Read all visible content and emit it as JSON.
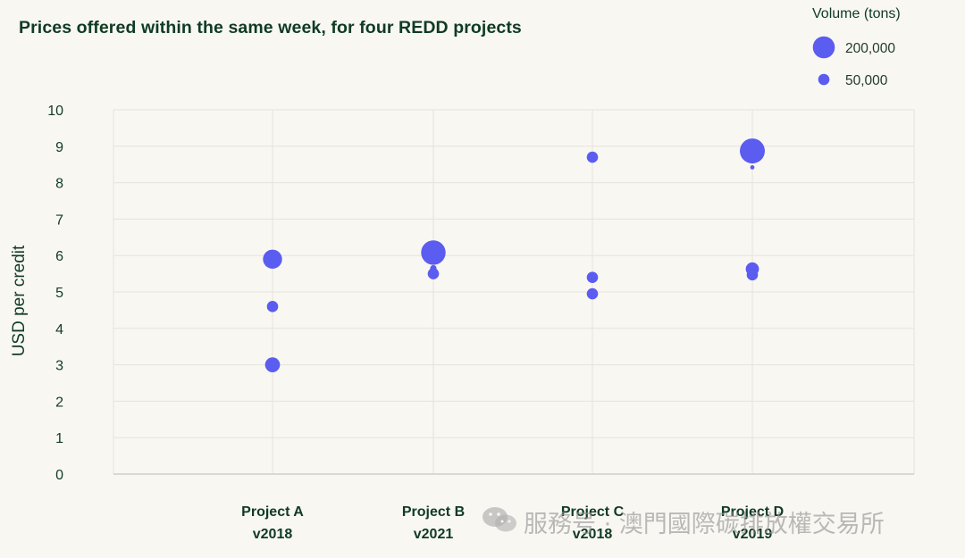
{
  "chart_data": {
    "type": "scatter",
    "title": "Prices offered within the same week, for four REDD projects",
    "ylabel": "USD per credit",
    "ylim": [
      0,
      10
    ],
    "yticks": [
      "0",
      "1",
      "2",
      "3",
      "4",
      "5",
      "6",
      "7",
      "8",
      "9",
      "10"
    ],
    "categories": [
      {
        "line1": "Project A",
        "line2": "v2018"
      },
      {
        "line1": "Project B",
        "line2": "v2021"
      },
      {
        "line1": "Project C",
        "line2": "v2018"
      },
      {
        "line1": "Project D",
        "line2": "v2019"
      }
    ],
    "size_legend": {
      "title": "Volume (tons)",
      "entries": [
        {
          "label": "200,000",
          "volume": 200000
        },
        {
          "label": "50,000",
          "volume": 50000
        }
      ]
    },
    "points": [
      {
        "category": 0,
        "price": 5.9,
        "volume": 150000
      },
      {
        "category": 0,
        "price": 4.6,
        "volume": 50000
      },
      {
        "category": 0,
        "price": 3.0,
        "volume": 90000
      },
      {
        "category": 1,
        "price": 6.08,
        "volume": 250000
      },
      {
        "category": 1,
        "price": 5.65,
        "volume": 15000
      },
      {
        "category": 1,
        "price": 5.5,
        "volume": 50000
      },
      {
        "category": 2,
        "price": 8.7,
        "volume": 50000
      },
      {
        "category": 2,
        "price": 5.4,
        "volume": 50000
      },
      {
        "category": 2,
        "price": 4.95,
        "volume": 50000
      },
      {
        "category": 3,
        "price": 8.87,
        "volume": 260000
      },
      {
        "category": 3,
        "price": 8.42,
        "volume": 6000
      },
      {
        "category": 3,
        "price": 5.63,
        "volume": 70000
      },
      {
        "category": 3,
        "price": 5.47,
        "volume": 50000
      }
    ],
    "grid": true,
    "legend_position": "top-right",
    "colors": {
      "marker": "#5b5cf0",
      "text": "#0f3b23",
      "grid": "#e6e3dc",
      "axis": "#c9c6bf",
      "background": "#f9f7f2"
    }
  },
  "watermark": "服務号 · 澳門國際碳排放權交易所"
}
